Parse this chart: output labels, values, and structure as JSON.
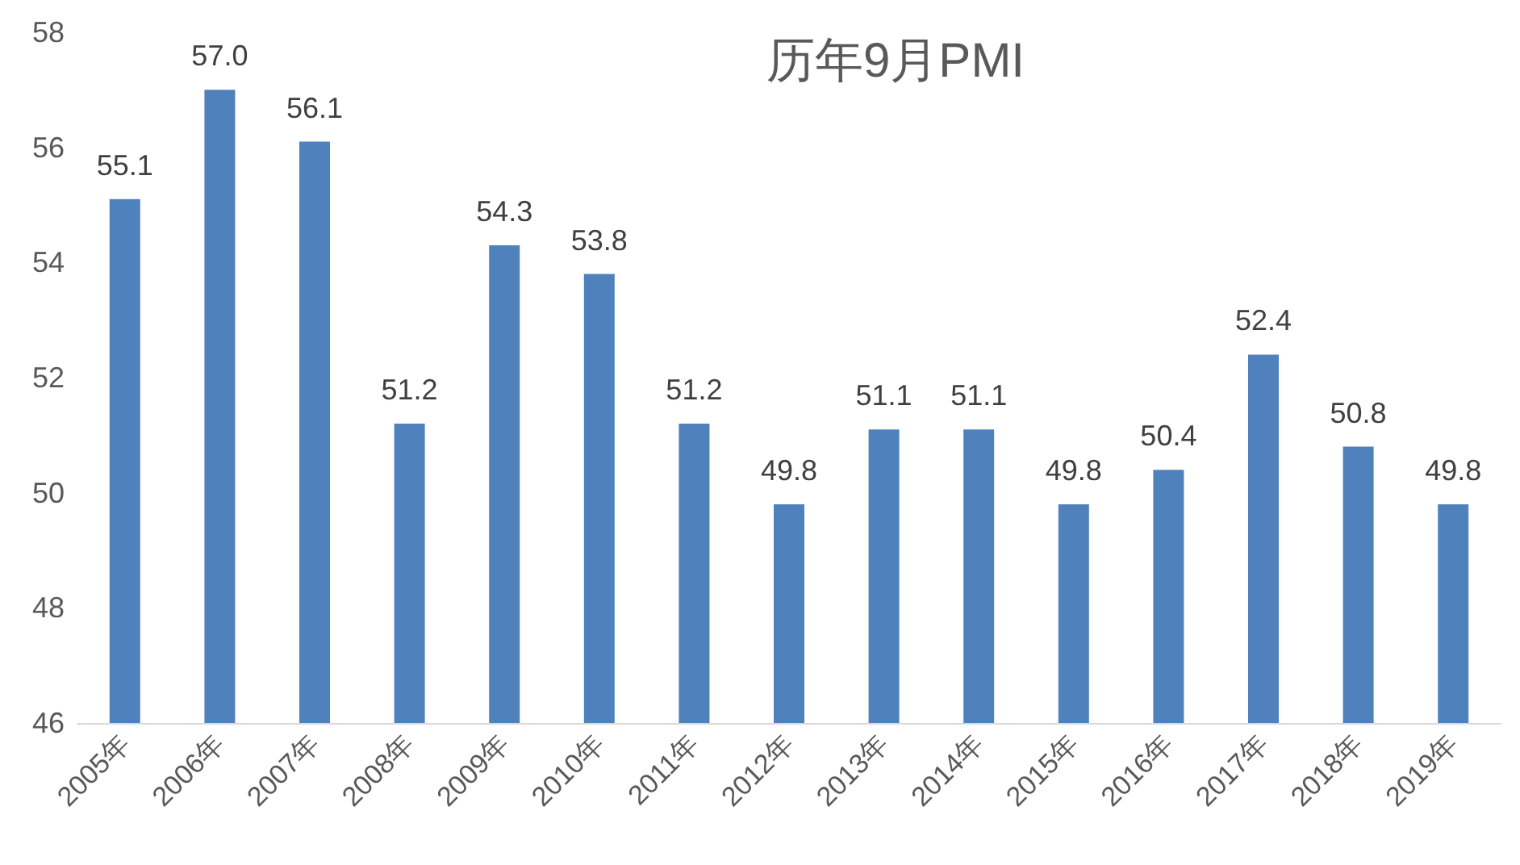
{
  "chart_data": {
    "type": "bar",
    "title": "历年9月PMI",
    "categories": [
      "2005年",
      "2006年",
      "2007年",
      "2008年",
      "2009年",
      "2010年",
      "2011年",
      "2012年",
      "2013年",
      "2014年",
      "2015年",
      "2016年",
      "2017年",
      "2018年",
      "2019年"
    ],
    "values": [
      55.1,
      57.0,
      56.1,
      51.2,
      54.3,
      53.8,
      51.2,
      49.8,
      51.1,
      51.1,
      49.8,
      50.4,
      52.4,
      50.8,
      49.8
    ],
    "value_labels": [
      "55.1",
      "57.0",
      "56.1",
      "51.2",
      "54.3",
      "53.8",
      "51.2",
      "49.8",
      "51.1",
      "51.1",
      "49.8",
      "50.4",
      "52.4",
      "50.8",
      "49.8"
    ],
    "color": "#4f81bd",
    "ylim": [
      46,
      58
    ],
    "yticks": [
      46,
      48,
      50,
      52,
      54,
      56,
      58
    ]
  }
}
